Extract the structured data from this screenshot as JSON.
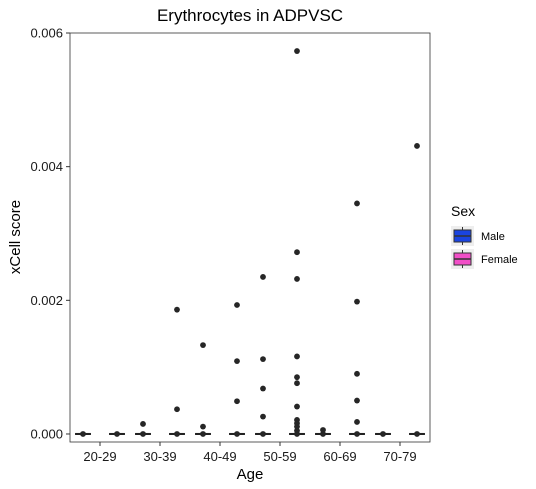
{
  "chart_data": {
    "type": "boxplot",
    "title": "Erythrocytes in ADPVSC",
    "xlabel": "Age",
    "ylabel": "xCell score",
    "categories": [
      "20-29",
      "30-39",
      "40-49",
      "50-59",
      "60-69",
      "70-79"
    ],
    "ylim": [
      -0.00012,
      0.006
    ],
    "yticks": [
      0.0,
      0.002,
      0.004,
      0.006
    ],
    "ytick_labels": [
      "0.000",
      "0.002",
      "0.004",
      "0.006"
    ],
    "grid": false,
    "legend": {
      "title": "Sex",
      "position": "right",
      "entries": [
        {
          "name": "Male",
          "color": "#1a44e0"
        },
        {
          "name": "Female",
          "color": "#f24fc8"
        }
      ]
    },
    "series": [
      {
        "name": "Male",
        "box_stats": [
          {
            "min": 0,
            "q1": 0,
            "median": 0,
            "q3": 0,
            "max": 0
          },
          {
            "min": 0,
            "q1": 0,
            "median": 0,
            "q3": 0,
            "max": 0
          },
          {
            "min": 0,
            "q1": 0,
            "median": 0,
            "q3": 0,
            "max": 0
          },
          {
            "min": 0,
            "q1": 0,
            "median": 0,
            "q3": 0,
            "max": 0
          },
          {
            "min": 0,
            "q1": 0,
            "median": 0,
            "q3": 0,
            "max": 0
          },
          {
            "min": 0,
            "q1": 0,
            "median": 0,
            "q3": 0,
            "max": 0
          }
        ],
        "outliers": [
          [
            0
          ],
          [
            0.00015,
            0
          ],
          [
            0.00133,
            0.00011,
            0
          ],
          [
            0.00235,
            0.00112,
            0.00068,
            0.00026,
            0
          ],
          [
            6e-05,
            0
          ],
          [
            0
          ]
        ]
      },
      {
        "name": "Female",
        "box_stats": [
          {
            "min": 0,
            "q1": 0,
            "median": 0,
            "q3": 0,
            "max": 0
          },
          {
            "min": 0,
            "q1": 0,
            "median": 0,
            "q3": 0,
            "max": 0
          },
          {
            "min": 0,
            "q1": 0,
            "median": 0,
            "q3": 0,
            "max": 0
          },
          {
            "min": 0,
            "q1": 0,
            "median": 0,
            "q3": 0,
            "max": 0
          },
          {
            "min": 0,
            "q1": 0,
            "median": 0,
            "q3": 0,
            "max": 0
          },
          {
            "min": 0,
            "q1": 0,
            "median": 0,
            "q3": 0,
            "max": 0
          }
        ],
        "outliers": [
          [
            0
          ],
          [
            0.00186,
            0.00037,
            0
          ],
          [
            0.00193,
            0.00109,
            0.00049,
            0
          ],
          [
            0.00573,
            0.00272,
            0.00232,
            0.00116,
            0.00085,
            0.00076,
            0.00041,
            0.00021,
            0.00016,
            0.00011,
            5e-05,
            0
          ],
          [
            0.00345,
            0.00198,
            0.0009,
            0.0005,
            0.00018,
            0
          ],
          [
            0.00431,
            0
          ]
        ]
      }
    ]
  }
}
